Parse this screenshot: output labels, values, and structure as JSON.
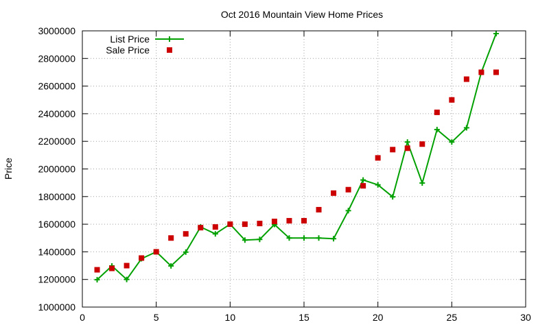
{
  "chart_data": {
    "type": "line",
    "title": "Oct 2016 Mountain View Home Prices",
    "xlabel": "",
    "ylabel": "Price",
    "xlim": [
      0,
      30
    ],
    "ylim": [
      1000000,
      3000000
    ],
    "xticks": [
      0,
      5,
      10,
      15,
      20,
      25,
      30
    ],
    "yticks": [
      1000000,
      1200000,
      1400000,
      1600000,
      1800000,
      2000000,
      2200000,
      2400000,
      2600000,
      2800000,
      3000000
    ],
    "grid": true,
    "legend_position": "top-left",
    "series": [
      {
        "name": "List Price",
        "style": "line-with-plus-markers",
        "color": "#00a000",
        "x": [
          1,
          2,
          3,
          4,
          5,
          6,
          7,
          8,
          9,
          10,
          11,
          12,
          13,
          14,
          15,
          16,
          17,
          18,
          19,
          20,
          21,
          22,
          23,
          24,
          25,
          26,
          27,
          28
        ],
        "y": [
          1198000,
          1298000,
          1200000,
          1350000,
          1400000,
          1298000,
          1398000,
          1580000,
          1530000,
          1600000,
          1485000,
          1490000,
          1598000,
          1500000,
          1500000,
          1500000,
          1495000,
          1698000,
          1920000,
          1885000,
          1798000,
          2195000,
          1898000,
          2285000,
          2195000,
          2298000,
          2700000,
          2980000
        ]
      },
      {
        "name": "Sale Price",
        "style": "square-markers",
        "color": "#cc0000",
        "x": [
          1,
          2,
          3,
          4,
          5,
          6,
          7,
          8,
          9,
          10,
          11,
          12,
          13,
          14,
          15,
          16,
          17,
          18,
          19,
          20,
          21,
          22,
          23,
          24,
          25,
          26,
          27,
          28
        ],
        "y": [
          1270000,
          1280000,
          1300000,
          1355000,
          1400000,
          1500000,
          1530000,
          1575000,
          1580000,
          1600000,
          1600000,
          1605000,
          1620000,
          1625000,
          1625000,
          1705000,
          1825000,
          1850000,
          1878000,
          2080000,
          2140000,
          2150000,
          2180000,
          2410000,
          2500000,
          2650000,
          2700000,
          2700000
        ]
      }
    ]
  }
}
